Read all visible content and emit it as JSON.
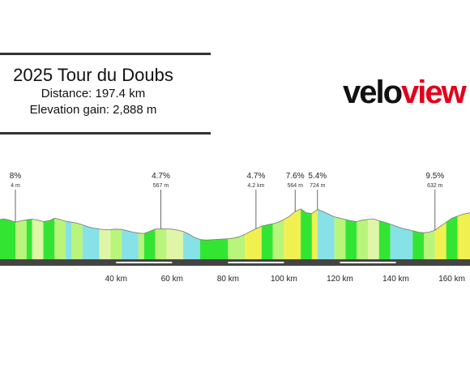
{
  "header": {
    "title": "2025 Tour du Doubs",
    "distance": "Distance: 197.4 km",
    "elevation_gain": "Elevation gain: 2,888 m"
  },
  "logo": {
    "part1": "velo",
    "part2": "view",
    "colors": {
      "part1": "#111111",
      "part2": "#e3001b"
    }
  },
  "chart_data": {
    "type": "area",
    "title": "2025 Tour du Doubs",
    "xlabel": "",
    "ylabel": "",
    "x_unit": "km",
    "xlim": [
      -1.5,
      166.5
    ],
    "ylim": [
      0,
      1100
    ],
    "x_ticks": [
      40,
      60,
      80,
      100,
      120,
      140,
      160
    ],
    "x_tick_labels": [
      "40 km",
      "60 km",
      "80 km",
      "100 km",
      "120 km",
      "140 km",
      "160 km"
    ],
    "grid": false,
    "legend": "none",
    "gradient_colors": {
      "steep": "#f0f050",
      "moderate": "#33e533",
      "gentle": "#b8f57a",
      "flat": "#dff5a8",
      "descent": "#86e2e6"
    },
    "profile": [
      [
        -1.5,
        600
      ],
      [
        0,
        610
      ],
      [
        2,
        590
      ],
      [
        4,
        560
      ],
      [
        6,
        580
      ],
      [
        8,
        595
      ],
      [
        10,
        605
      ],
      [
        12,
        590
      ],
      [
        14,
        570
      ],
      [
        16,
        580
      ],
      [
        18,
        620
      ],
      [
        20,
        600
      ],
      [
        22,
        575
      ],
      [
        24,
        560
      ],
      [
        26,
        545
      ],
      [
        28,
        520
      ],
      [
        30,
        490
      ],
      [
        32,
        470
      ],
      [
        34,
        455
      ],
      [
        36,
        447
      ],
      [
        38,
        448
      ],
      [
        40,
        455
      ],
      [
        42,
        450
      ],
      [
        44,
        430
      ],
      [
        46,
        410
      ],
      [
        48,
        395
      ],
      [
        50,
        390
      ],
      [
        52,
        420
      ],
      [
        54,
        455
      ],
      [
        56,
        460
      ],
      [
        58,
        458
      ],
      [
        60,
        455
      ],
      [
        62,
        440
      ],
      [
        64,
        420
      ],
      [
        66,
        380
      ],
      [
        68,
        330
      ],
      [
        70,
        300
      ],
      [
        72,
        290
      ],
      [
        74,
        295
      ],
      [
        76,
        300
      ],
      [
        78,
        305
      ],
      [
        80,
        310
      ],
      [
        82,
        320
      ],
      [
        84,
        340
      ],
      [
        86,
        375
      ],
      [
        88,
        420
      ],
      [
        90,
        460
      ],
      [
        92,
        500
      ],
      [
        94,
        520
      ],
      [
        96,
        535
      ],
      [
        98,
        560
      ],
      [
        100,
        600
      ],
      [
        102,
        650
      ],
      [
        104,
        720
      ],
      [
        106,
        760
      ],
      [
        108,
        700
      ],
      [
        110,
        690
      ],
      [
        112,
        750
      ],
      [
        114,
        720
      ],
      [
        116,
        680
      ],
      [
        118,
        640
      ],
      [
        120,
        620
      ],
      [
        122,
        600
      ],
      [
        124,
        580
      ],
      [
        126,
        570
      ],
      [
        128,
        590
      ],
      [
        130,
        600
      ],
      [
        132,
        610
      ],
      [
        134,
        580
      ],
      [
        136,
        560
      ],
      [
        138,
        530
      ],
      [
        140,
        500
      ],
      [
        142,
        470
      ],
      [
        144,
        450
      ],
      [
        146,
        430
      ],
      [
        148,
        410
      ],
      [
        150,
        400
      ],
      [
        152,
        410
      ],
      [
        154,
        440
      ],
      [
        156,
        500
      ],
      [
        158,
        560
      ],
      [
        160,
        620
      ],
      [
        162,
        650
      ],
      [
        164,
        680
      ],
      [
        166.5,
        700
      ]
    ],
    "segments": [
      {
        "from": -1.5,
        "to": 4,
        "gradient": "moderate"
      },
      {
        "from": 4,
        "to": 8,
        "gradient": "gentle"
      },
      {
        "from": 8,
        "to": 10,
        "gradient": "moderate"
      },
      {
        "from": 10,
        "to": 14,
        "gradient": "flat"
      },
      {
        "from": 14,
        "to": 18,
        "gradient": "moderate"
      },
      {
        "from": 18,
        "to": 22,
        "gradient": "gentle"
      },
      {
        "from": 22,
        "to": 24,
        "gradient": "descent"
      },
      {
        "from": 24,
        "to": 28,
        "gradient": "gentle"
      },
      {
        "from": 28,
        "to": 34,
        "gradient": "descent"
      },
      {
        "from": 34,
        "to": 38,
        "gradient": "flat"
      },
      {
        "from": 38,
        "to": 42,
        "gradient": "gentle"
      },
      {
        "from": 42,
        "to": 48,
        "gradient": "descent"
      },
      {
        "from": 48,
        "to": 50,
        "gradient": "gentle"
      },
      {
        "from": 50,
        "to": 54,
        "gradient": "moderate"
      },
      {
        "from": 54,
        "to": 58,
        "gradient": "gentle"
      },
      {
        "from": 58,
        "to": 64,
        "gradient": "flat"
      },
      {
        "from": 64,
        "to": 70,
        "gradient": "descent"
      },
      {
        "from": 70,
        "to": 80,
        "gradient": "moderate"
      },
      {
        "from": 80,
        "to": 86,
        "gradient": "gentle"
      },
      {
        "from": 86,
        "to": 92,
        "gradient": "steep"
      },
      {
        "from": 92,
        "to": 96,
        "gradient": "moderate"
      },
      {
        "from": 96,
        "to": 100,
        "gradient": "gentle"
      },
      {
        "from": 100,
        "to": 106,
        "gradient": "steep"
      },
      {
        "from": 106,
        "to": 110,
        "gradient": "moderate"
      },
      {
        "from": 110,
        "to": 112,
        "gradient": "steep"
      },
      {
        "from": 112,
        "to": 118,
        "gradient": "descent"
      },
      {
        "from": 118,
        "to": 122,
        "gradient": "gentle"
      },
      {
        "from": 122,
        "to": 126,
        "gradient": "moderate"
      },
      {
        "from": 126,
        "to": 130,
        "gradient": "gentle"
      },
      {
        "from": 130,
        "to": 134,
        "gradient": "flat"
      },
      {
        "from": 134,
        "to": 138,
        "gradient": "moderate"
      },
      {
        "from": 138,
        "to": 146,
        "gradient": "descent"
      },
      {
        "from": 146,
        "to": 150,
        "gradient": "moderate"
      },
      {
        "from": 150,
        "to": 154,
        "gradient": "gentle"
      },
      {
        "from": 154,
        "to": 158,
        "gradient": "steep"
      },
      {
        "from": 158,
        "to": 162,
        "gradient": "moderate"
      },
      {
        "from": 162,
        "to": 166.5,
        "gradient": "steep"
      }
    ],
    "climbs": [
      {
        "x": 4,
        "gradient": "8%",
        "detail": "4 m"
      },
      {
        "x": 56,
        "gradient": "4.7%",
        "detail": "567 m"
      },
      {
        "x": 90,
        "gradient": "4.7%",
        "detail": "4.2 km"
      },
      {
        "x": 104,
        "gradient": "7.6%",
        "detail": "564 m"
      },
      {
        "x": 112,
        "gradient": "5.4%",
        "detail": "724 m"
      },
      {
        "x": 154,
        "gradient": "9.5%",
        "detail": "632 m"
      }
    ]
  }
}
